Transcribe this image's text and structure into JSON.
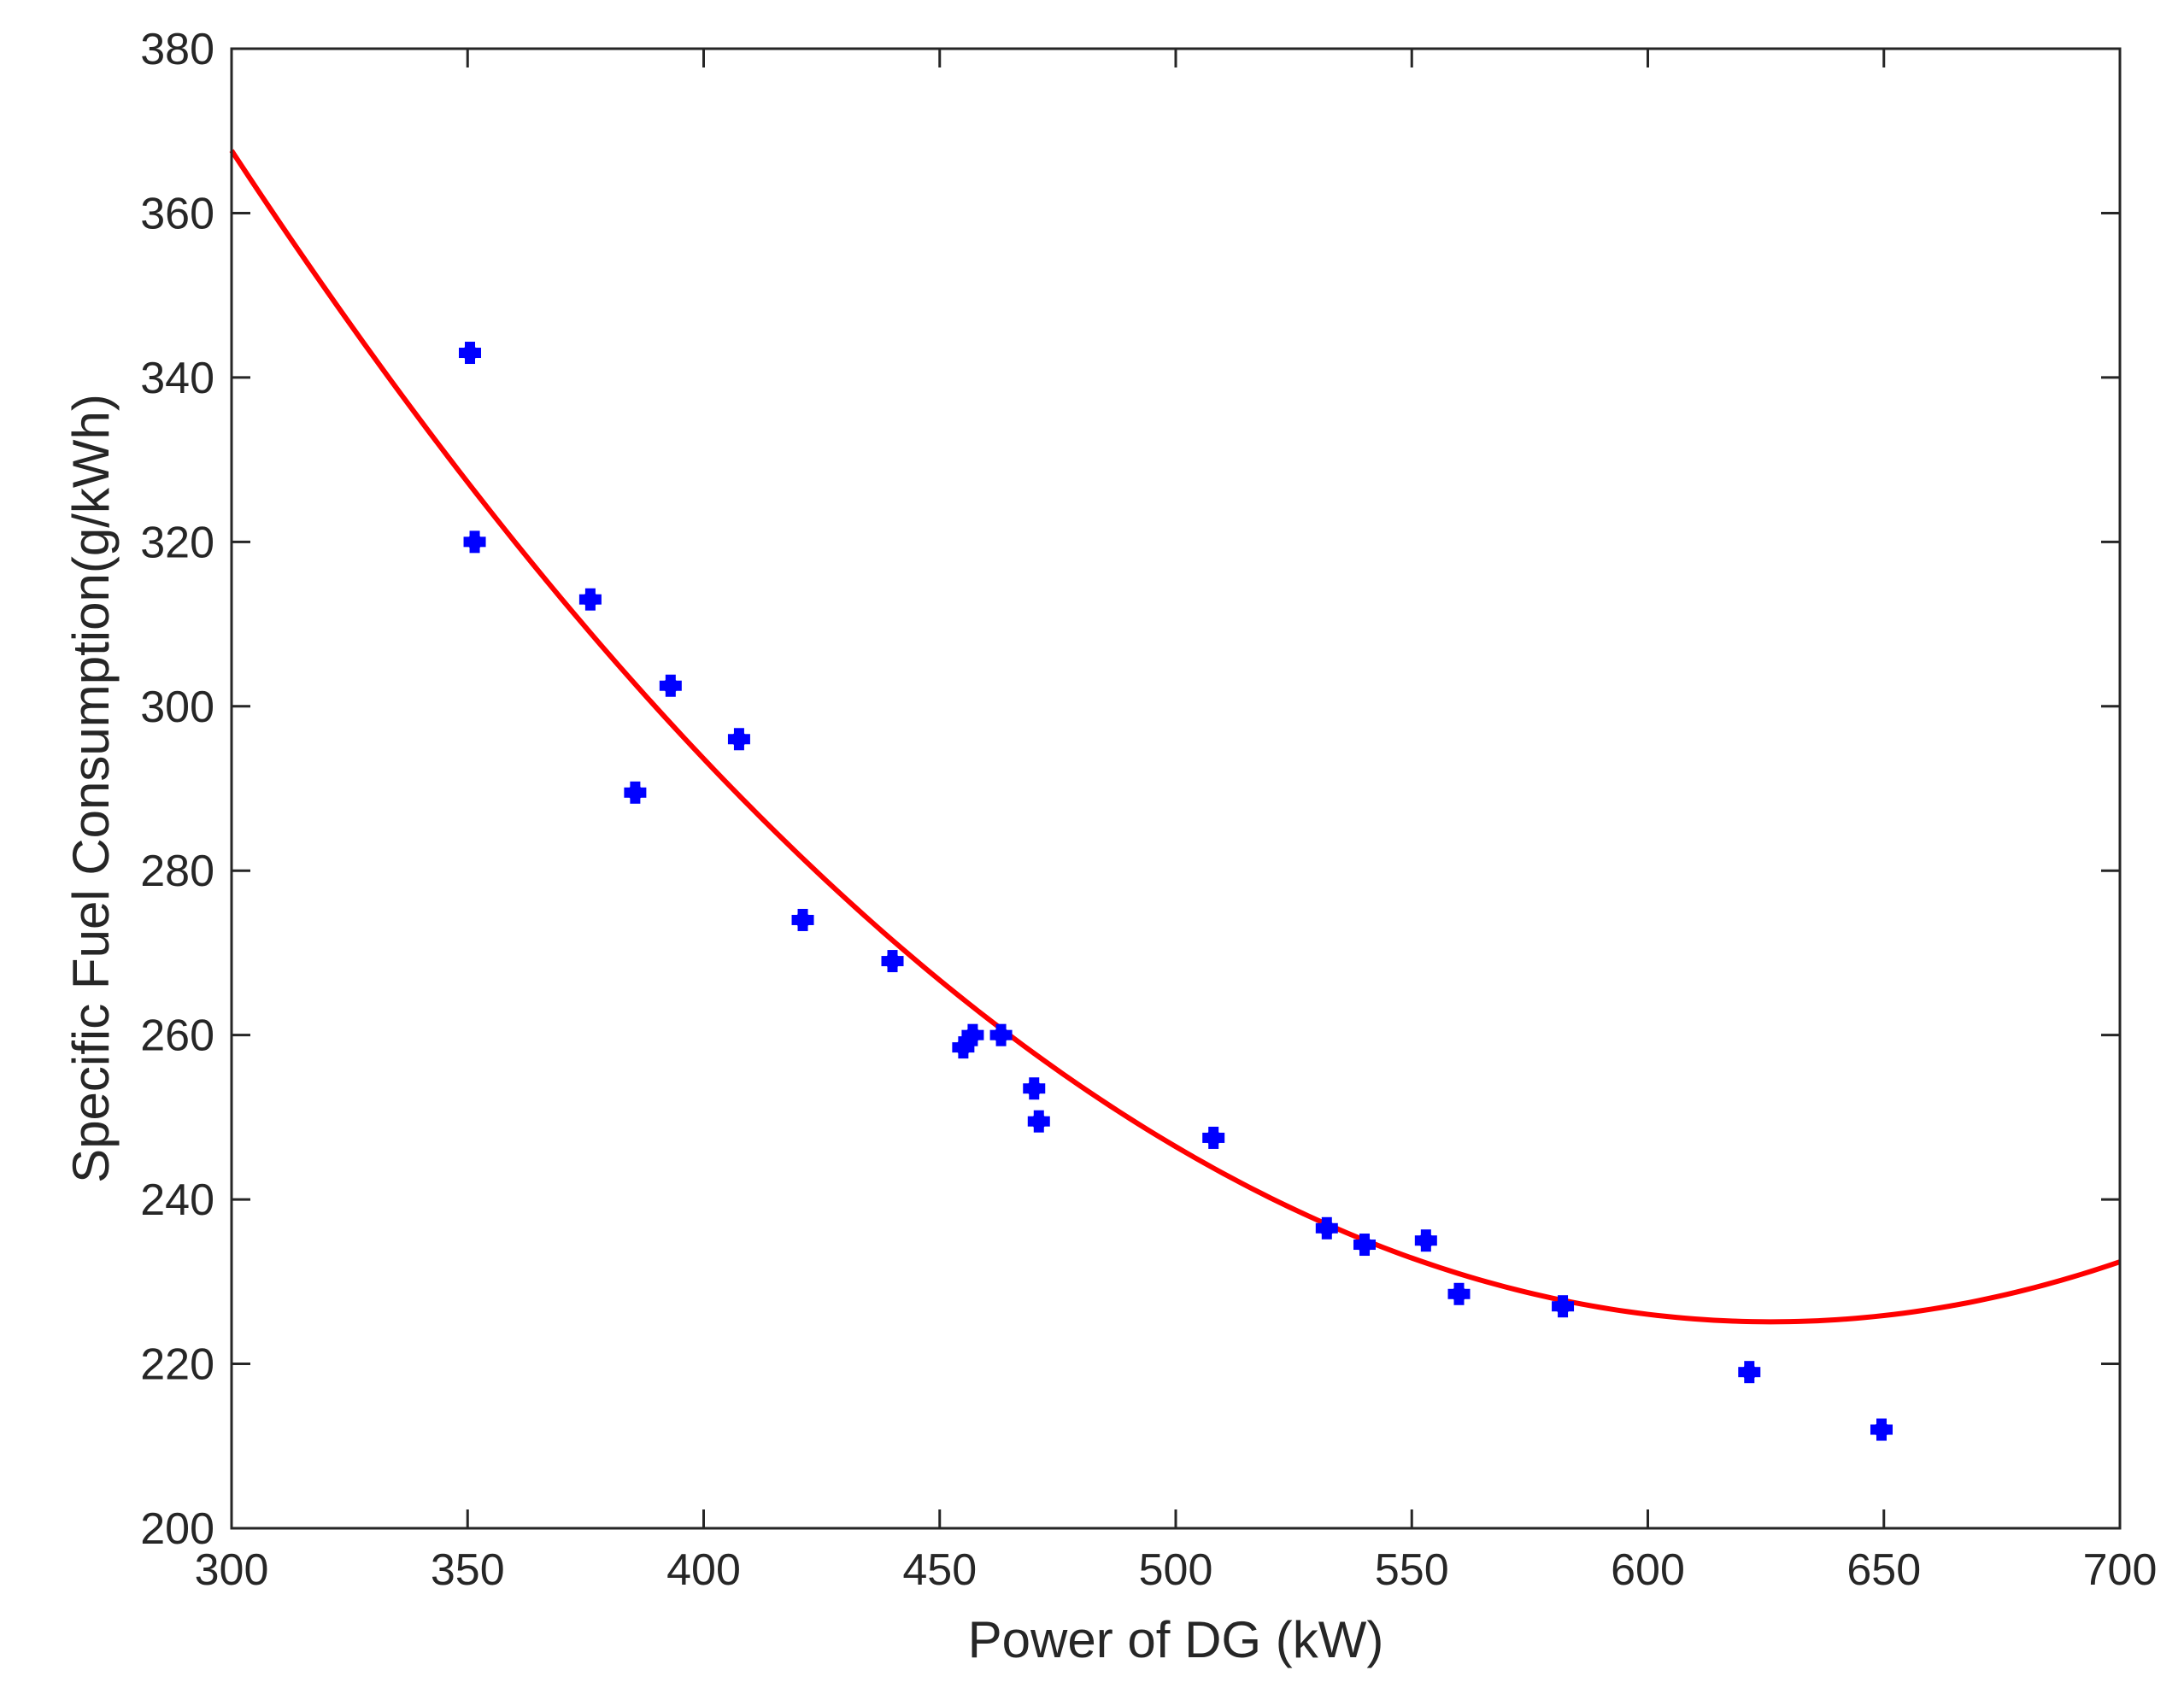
{
  "chart_data": {
    "type": "scatter",
    "title": "",
    "xlabel": "Power of DG  (kW)",
    "ylabel": "Specific Fuel Consumption(g/kWh)",
    "xlim": [
      300,
      700
    ],
    "ylim": [
      200,
      380
    ],
    "xticks": [
      300,
      350,
      400,
      450,
      500,
      550,
      600,
      650,
      700
    ],
    "yticks": [
      200,
      220,
      240,
      260,
      280,
      300,
      320,
      340,
      360,
      380
    ],
    "grid": false,
    "legend": "none",
    "series": [
      {
        "type": "scatter",
        "color": "#0000ff",
        "marker": "plus-filled",
        "points": [
          [
            350.5,
            343
          ],
          [
            351.5,
            320
          ],
          [
            376,
            313
          ],
          [
            385.5,
            289.5
          ],
          [
            393,
            302.5
          ],
          [
            407.5,
            296
          ],
          [
            421,
            274
          ],
          [
            440,
            269
          ],
          [
            455,
            258.5
          ],
          [
            457,
            260
          ],
          [
            463,
            260
          ],
          [
            470,
            253.5
          ],
          [
            471,
            249.5
          ],
          [
            508,
            247.5
          ],
          [
            532,
            236.5
          ],
          [
            540,
            234.5
          ],
          [
            553,
            235
          ],
          [
            560,
            228.5
          ],
          [
            582,
            227
          ],
          [
            621.5,
            219
          ],
          [
            649.5,
            212
          ]
        ]
      },
      {
        "type": "line",
        "color": "#ff0000",
        "fit": "quadratic",
        "x": [
          300,
          325,
          350,
          375,
          400,
          425,
          450,
          475,
          500,
          525,
          550,
          575,
          600,
          625,
          650,
          675,
          700
        ],
        "y": [
          367.6,
          346.6,
          327.3,
          309.6,
          293.6,
          279.3,
          266.7,
          255.7,
          246.4,
          238.8,
          232.9,
          228.6,
          226.1,
          225.1,
          225.9,
          228.3,
          232.4
        ]
      }
    ]
  }
}
